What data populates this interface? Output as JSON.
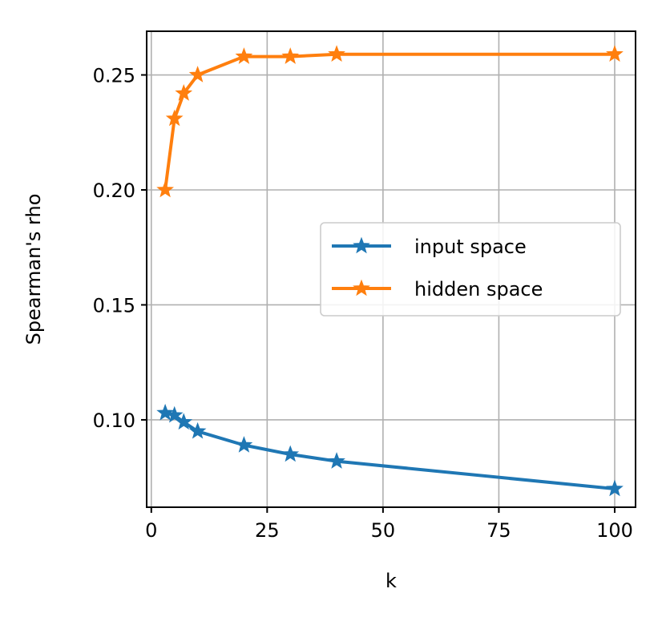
{
  "chart_data": {
    "type": "line",
    "xlabel": "k",
    "ylabel": "Spearman's rho",
    "xlim": [
      -1,
      104.5
    ],
    "ylim": [
      0.062,
      0.269
    ],
    "xticks": [
      0,
      25,
      50,
      75,
      100
    ],
    "xtick_labels": [
      "0",
      "25",
      "50",
      "75",
      "100"
    ],
    "yticks": [
      0.1,
      0.15,
      0.2,
      0.25
    ],
    "ytick_labels": [
      "0.10",
      "0.15",
      "0.20",
      "0.25"
    ],
    "grid": true,
    "legend_position": "center-right",
    "series": [
      {
        "name": "input space",
        "color": "#1f77b4",
        "marker": "star",
        "x": [
          3,
          5,
          7,
          10,
          20,
          30,
          40,
          100
        ],
        "y": [
          0.103,
          0.102,
          0.099,
          0.095,
          0.089,
          0.085,
          0.082,
          0.07
        ]
      },
      {
        "name": "hidden space",
        "color": "#ff7f0e",
        "marker": "star",
        "x": [
          3,
          5,
          7,
          10,
          20,
          30,
          40,
          100
        ],
        "y": [
          0.2,
          0.231,
          0.242,
          0.25,
          0.258,
          0.258,
          0.259,
          0.259
        ]
      }
    ]
  }
}
